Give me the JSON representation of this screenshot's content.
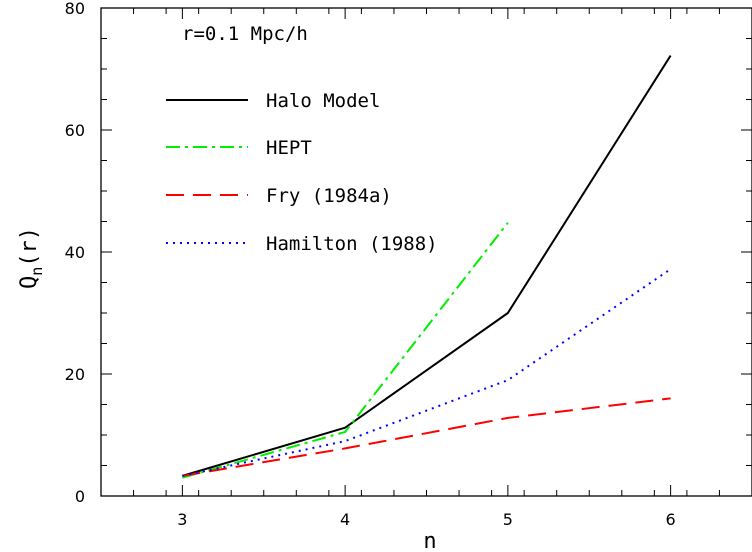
{
  "chart_data": {
    "type": "line",
    "annotation": "r=0.1 Mpc/h",
    "xlabel": "n",
    "ylabel_main": "Q",
    "ylabel_sub": "n",
    "ylabel_tail": "(r)",
    "xlim": [
      2.5,
      6.5
    ],
    "ylim": [
      0,
      80
    ],
    "xticks": [
      "3",
      "4",
      "5",
      "6"
    ],
    "yticks": [
      "0",
      "20",
      "40",
      "60",
      "80"
    ],
    "legend_position": "top-left",
    "series": [
      {
        "name": "Halo Model",
        "color": "#000000",
        "dash": "solid",
        "x": [
          3,
          4,
          5,
          6
        ],
        "y": [
          3.3,
          11.2,
          30.0,
          72.2
        ]
      },
      {
        "name": "HEPT",
        "color": "#00ee00",
        "dash": "dashdot",
        "x": [
          3,
          4,
          5
        ],
        "y": [
          3.0,
          10.5,
          44.8
        ]
      },
      {
        "name": "Fry (1984a)",
        "color": "#ff0000",
        "dash": "dashed",
        "x": [
          3,
          4,
          5,
          6
        ],
        "y": [
          3.3,
          7.8,
          12.8,
          16.0
        ]
      },
      {
        "name": "Hamilton (1988)",
        "color": "#0000ff",
        "dash": "dotted",
        "x": [
          3,
          4,
          5,
          6
        ],
        "y": [
          3.3,
          9.0,
          19.0,
          37.2
        ]
      }
    ]
  }
}
